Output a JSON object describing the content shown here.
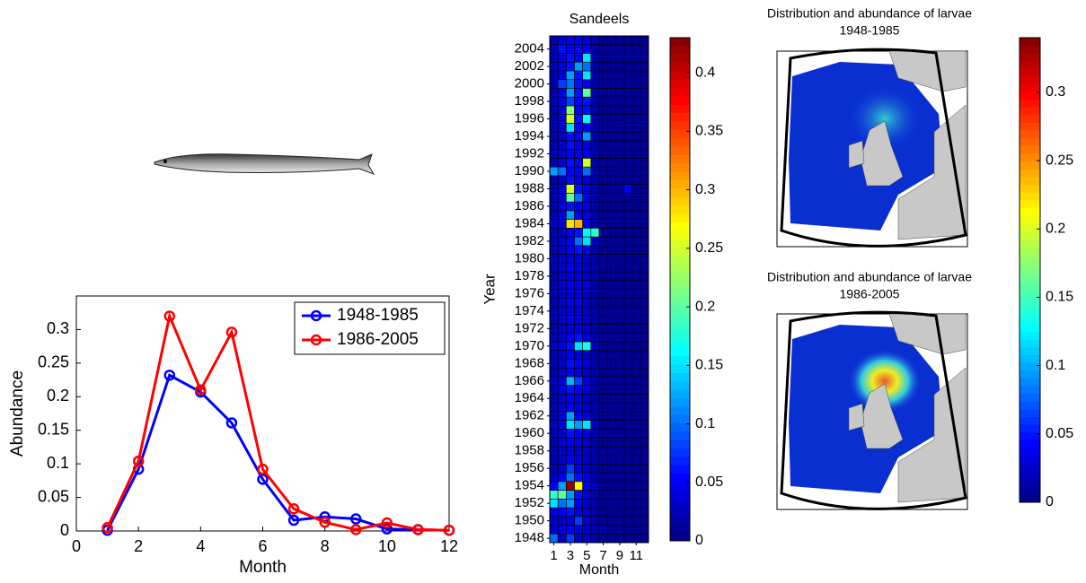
{
  "chart_data": [
    {
      "type": "line",
      "xlabel": "Month",
      "ylabel": "Abundance",
      "x": [
        1,
        2,
        3,
        4,
        5,
        6,
        7,
        8,
        9,
        10,
        11,
        12
      ],
      "series": [
        {
          "name": "1948-1985",
          "color": "#0000ff",
          "values": [
            0.001,
            0.092,
            0.232,
            0.207,
            0.161,
            0.077,
            0.016,
            0.021,
            0.018,
            0.003,
            0.002,
            0.001
          ]
        },
        {
          "name": "1986-2005",
          "color": "#ff0000",
          "values": [
            0.005,
            0.104,
            0.32,
            0.21,
            0.296,
            0.092,
            0.033,
            0.013,
            0.002,
            0.012,
            0.002,
            0.001
          ]
        }
      ],
      "xlim": [
        0,
        12
      ],
      "xticks": [
        0,
        2,
        4,
        6,
        8,
        10,
        12
      ],
      "ylim": [
        0,
        0.35
      ],
      "yticks": [
        0,
        0.05,
        0.1,
        0.15,
        0.2,
        0.25,
        0.3
      ],
      "legend": "northeast"
    },
    {
      "type": "heatmap",
      "title": "Sandeels",
      "xlabel": "Month",
      "ylabel": "Year",
      "colormap": "jet",
      "x": [
        1,
        2,
        3,
        4,
        5,
        6,
        7,
        8,
        9,
        10,
        11,
        12
      ],
      "y": [
        1948,
        1949,
        1950,
        1951,
        1952,
        1953,
        1954,
        1955,
        1956,
        1957,
        1958,
        1959,
        1960,
        1961,
        1962,
        1963,
        1964,
        1965,
        1966,
        1967,
        1968,
        1969,
        1970,
        1971,
        1972,
        1973,
        1974,
        1975,
        1976,
        1977,
        1978,
        1979,
        1980,
        1981,
        1982,
        1983,
        1984,
        1985,
        1986,
        1987,
        1988,
        1989,
        1990,
        1991,
        1992,
        1993,
        1994,
        1995,
        1996,
        1997,
        1998,
        1999,
        2000,
        2001,
        2002,
        2003,
        2004,
        2005
      ],
      "values": [
        [
          0.1,
          0.03,
          0.08,
          0.03,
          0.03,
          0.02,
          0.01,
          0.01,
          0.01,
          0.01,
          0.01,
          0.01
        ],
        [
          0.03,
          0.04,
          0.05,
          0.04,
          0.03,
          0.02,
          0.02,
          0.01,
          0.01,
          0.01,
          0.01,
          0.01
        ],
        [
          0.03,
          0.03,
          0.04,
          0.08,
          0.03,
          0.02,
          0.01,
          0.01,
          0.01,
          0.01,
          0.01,
          0.01
        ],
        [
          0.04,
          0.05,
          0.06,
          0.04,
          0.03,
          0.02,
          0.01,
          0.01,
          0.01,
          0.01,
          0.01,
          0.01
        ],
        [
          0.15,
          0.1,
          0.12,
          0.05,
          0.03,
          0.02,
          0.01,
          0.01,
          0.01,
          0.01,
          0.01,
          0.01
        ],
        [
          0.18,
          0.2,
          0.12,
          0.06,
          0.04,
          0.02,
          0.01,
          0.01,
          0.01,
          0.01,
          0.01,
          0.01
        ],
        [
          0.05,
          0.12,
          0.42,
          0.27,
          0.05,
          0.03,
          0.01,
          0.01,
          0.01,
          0.01,
          0.01,
          0.01
        ],
        [
          0.03,
          0.05,
          0.1,
          0.06,
          0.04,
          0.02,
          0.01,
          0.01,
          0.01,
          0.01,
          0.01,
          0.01
        ],
        [
          0.02,
          0.03,
          0.08,
          0.04,
          0.03,
          0.02,
          0.01,
          0.01,
          0.01,
          0.01,
          0.01,
          0.01
        ],
        [
          0.02,
          0.03,
          0.05,
          0.04,
          0.03,
          0.02,
          0.01,
          0.01,
          0.01,
          0.01,
          0.01,
          0.01
        ],
        [
          0.02,
          0.03,
          0.04,
          0.03,
          0.03,
          0.02,
          0.01,
          0.01,
          0.01,
          0.01,
          0.01,
          0.01
        ],
        [
          0.02,
          0.04,
          0.05,
          0.04,
          0.03,
          0.02,
          0.01,
          0.01,
          0.01,
          0.01,
          0.01,
          0.01
        ],
        [
          0.02,
          0.03,
          0.06,
          0.05,
          0.04,
          0.02,
          0.01,
          0.01,
          0.01,
          0.01,
          0.01,
          0.01
        ],
        [
          0.03,
          0.04,
          0.15,
          0.12,
          0.15,
          0.03,
          0.01,
          0.01,
          0.01,
          0.01,
          0.01,
          0.01
        ],
        [
          0.02,
          0.04,
          0.12,
          0.05,
          0.04,
          0.02,
          0.01,
          0.01,
          0.01,
          0.01,
          0.01,
          0.01
        ],
        [
          0.02,
          0.03,
          0.05,
          0.04,
          0.03,
          0.02,
          0.01,
          0.01,
          0.01,
          0.01,
          0.01,
          0.01
        ],
        [
          0.02,
          0.03,
          0.05,
          0.04,
          0.03,
          0.02,
          0.01,
          0.01,
          0.01,
          0.01,
          0.01,
          0.01
        ],
        [
          0.02,
          0.04,
          0.06,
          0.05,
          0.04,
          0.02,
          0.01,
          0.01,
          0.01,
          0.01,
          0.01,
          0.01
        ],
        [
          0.03,
          0.04,
          0.13,
          0.08,
          0.04,
          0.02,
          0.01,
          0.01,
          0.01,
          0.01,
          0.01,
          0.01
        ],
        [
          0.02,
          0.03,
          0.05,
          0.04,
          0.03,
          0.02,
          0.01,
          0.01,
          0.01,
          0.01,
          0.01,
          0.01
        ],
        [
          0.02,
          0.03,
          0.06,
          0.05,
          0.04,
          0.02,
          0.01,
          0.01,
          0.01,
          0.01,
          0.01,
          0.01
        ],
        [
          0.02,
          0.03,
          0.05,
          0.04,
          0.03,
          0.02,
          0.01,
          0.01,
          0.01,
          0.01,
          0.01,
          0.01
        ],
        [
          0.03,
          0.04,
          0.06,
          0.15,
          0.17,
          0.03,
          0.01,
          0.01,
          0.01,
          0.01,
          0.01,
          0.01
        ],
        [
          0.02,
          0.03,
          0.05,
          0.06,
          0.04,
          0.02,
          0.01,
          0.01,
          0.01,
          0.01,
          0.01,
          0.01
        ],
        [
          0.02,
          0.03,
          0.04,
          0.04,
          0.03,
          0.02,
          0.01,
          0.01,
          0.01,
          0.01,
          0.01,
          0.01
        ],
        [
          0.02,
          0.03,
          0.05,
          0.04,
          0.03,
          0.02,
          0.01,
          0.01,
          0.01,
          0.01,
          0.01,
          0.01
        ],
        [
          0.02,
          0.03,
          0.04,
          0.04,
          0.03,
          0.02,
          0.01,
          0.01,
          0.01,
          0.01,
          0.01,
          0.01
        ],
        [
          0.02,
          0.03,
          0.05,
          0.05,
          0.03,
          0.02,
          0.01,
          0.01,
          0.01,
          0.01,
          0.01,
          0.01
        ],
        [
          0.02,
          0.03,
          0.04,
          0.04,
          0.03,
          0.02,
          0.01,
          0.01,
          0.01,
          0.01,
          0.01,
          0.01
        ],
        [
          0.02,
          0.03,
          0.05,
          0.04,
          0.04,
          0.02,
          0.01,
          0.01,
          0.01,
          0.01,
          0.01,
          0.01
        ],
        [
          0.02,
          0.03,
          0.04,
          0.04,
          0.03,
          0.02,
          0.01,
          0.01,
          0.01,
          0.01,
          0.01,
          0.01
        ],
        [
          0.02,
          0.03,
          0.05,
          0.04,
          0.03,
          0.02,
          0.01,
          0.01,
          0.01,
          0.01,
          0.01,
          0.01
        ],
        [
          0.02,
          0.03,
          0.04,
          0.04,
          0.03,
          0.02,
          0.01,
          0.01,
          0.01,
          0.01,
          0.01,
          0.01
        ],
        [
          0.02,
          0.03,
          0.05,
          0.06,
          0.04,
          0.02,
          0.01,
          0.01,
          0.01,
          0.01,
          0.01,
          0.01
        ],
        [
          0.02,
          0.03,
          0.05,
          0.1,
          0.15,
          0.03,
          0.01,
          0.01,
          0.01,
          0.01,
          0.01,
          0.01
        ],
        [
          0.02,
          0.03,
          0.05,
          0.06,
          0.16,
          0.18,
          0.01,
          0.01,
          0.01,
          0.01,
          0.01,
          0.01
        ],
        [
          0.03,
          0.04,
          0.28,
          0.3,
          0.05,
          0.02,
          0.01,
          0.01,
          0.01,
          0.01,
          0.01,
          0.01
        ],
        [
          0.02,
          0.04,
          0.12,
          0.05,
          0.04,
          0.02,
          0.01,
          0.01,
          0.01,
          0.01,
          0.01,
          0.01
        ],
        [
          0.02,
          0.04,
          0.06,
          0.05,
          0.04,
          0.02,
          0.01,
          0.01,
          0.01,
          0.01,
          0.01,
          0.01
        ],
        [
          0.02,
          0.04,
          0.2,
          0.1,
          0.04,
          0.02,
          0.01,
          0.01,
          0.01,
          0.01,
          0.01,
          0.01
        ],
        [
          0.02,
          0.04,
          0.25,
          0.06,
          0.04,
          0.02,
          0.01,
          0.01,
          0.01,
          0.05,
          0.01,
          0.01
        ],
        [
          0.02,
          0.03,
          0.06,
          0.04,
          0.04,
          0.02,
          0.01,
          0.01,
          0.01,
          0.01,
          0.01,
          0.01
        ],
        [
          0.12,
          0.1,
          0.05,
          0.05,
          0.1,
          0.02,
          0.01,
          0.01,
          0.01,
          0.01,
          0.01,
          0.01
        ],
        [
          0.02,
          0.03,
          0.06,
          0.05,
          0.25,
          0.02,
          0.01,
          0.01,
          0.01,
          0.01,
          0.01,
          0.01
        ],
        [
          0.02,
          0.03,
          0.05,
          0.04,
          0.05,
          0.02,
          0.01,
          0.01,
          0.01,
          0.01,
          0.01,
          0.01
        ],
        [
          0.02,
          0.03,
          0.06,
          0.04,
          0.04,
          0.02,
          0.01,
          0.01,
          0.01,
          0.01,
          0.01,
          0.01
        ],
        [
          0.02,
          0.03,
          0.06,
          0.05,
          0.12,
          0.02,
          0.01,
          0.01,
          0.01,
          0.01,
          0.01,
          0.01
        ],
        [
          0.02,
          0.03,
          0.15,
          0.05,
          0.05,
          0.02,
          0.01,
          0.01,
          0.01,
          0.01,
          0.01,
          0.01
        ],
        [
          0.02,
          0.04,
          0.25,
          0.06,
          0.16,
          0.02,
          0.01,
          0.01,
          0.01,
          0.01,
          0.01,
          0.01
        ],
        [
          0.02,
          0.04,
          0.22,
          0.05,
          0.06,
          0.02,
          0.01,
          0.01,
          0.01,
          0.01,
          0.01,
          0.01
        ],
        [
          0.02,
          0.04,
          0.08,
          0.05,
          0.06,
          0.02,
          0.01,
          0.01,
          0.01,
          0.01,
          0.01,
          0.01
        ],
        [
          0.02,
          0.04,
          0.12,
          0.06,
          0.2,
          0.02,
          0.01,
          0.01,
          0.01,
          0.01,
          0.01,
          0.01
        ],
        [
          0.02,
          0.08,
          0.1,
          0.06,
          0.05,
          0.02,
          0.01,
          0.01,
          0.01,
          0.01,
          0.01,
          0.01
        ],
        [
          0.02,
          0.04,
          0.12,
          0.06,
          0.15,
          0.02,
          0.01,
          0.01,
          0.01,
          0.01,
          0.01,
          0.01
        ],
        [
          0.02,
          0.04,
          0.06,
          0.12,
          0.1,
          0.02,
          0.01,
          0.01,
          0.01,
          0.01,
          0.01,
          0.01
        ],
        [
          0.02,
          0.04,
          0.06,
          0.05,
          0.15,
          0.02,
          0.01,
          0.01,
          0.01,
          0.01,
          0.01,
          0.01
        ],
        [
          0.02,
          0.06,
          0.05,
          0.05,
          0.05,
          0.02,
          0.01,
          0.01,
          0.01,
          0.01,
          0.01,
          0.01
        ],
        [
          0.02,
          0.04,
          0.05,
          0.05,
          0.04,
          0.02,
          0.01,
          0.01,
          0.01,
          0.01,
          0.01,
          0.01
        ]
      ],
      "xlim": [
        0.5,
        12.5
      ],
      "xticks": [
        1,
        3,
        5,
        7,
        9,
        11
      ],
      "ylim": [
        1947.5,
        2005.5
      ],
      "yticks": [
        1948,
        1950,
        1952,
        1954,
        1956,
        1958,
        1960,
        1962,
        1964,
        1966,
        1968,
        1970,
        1972,
        1974,
        1976,
        1978,
        1980,
        1982,
        1984,
        1986,
        1988,
        1990,
        1992,
        1994,
        1996,
        1998,
        2000,
        2002,
        2004
      ],
      "colorbar": {
        "ylim": [
          0,
          0.43
        ],
        "yticks": [
          0,
          0.05,
          0.1,
          0.15,
          0.2,
          0.25,
          0.3,
          0.35,
          0.4
        ]
      }
    },
    {
      "type": "map",
      "colormap": "jet",
      "panels": [
        {
          "title": "Distribution and abundance of larvae",
          "subtitle": "1948-1985"
        },
        {
          "title": "Distribution and abundance of larvae",
          "subtitle": "1986-2005"
        }
      ],
      "colorbar": {
        "ylim": [
          0,
          0.34
        ],
        "yticks": [
          0,
          0.05,
          0.1,
          0.15,
          0.2,
          0.25,
          0.3
        ]
      }
    }
  ]
}
